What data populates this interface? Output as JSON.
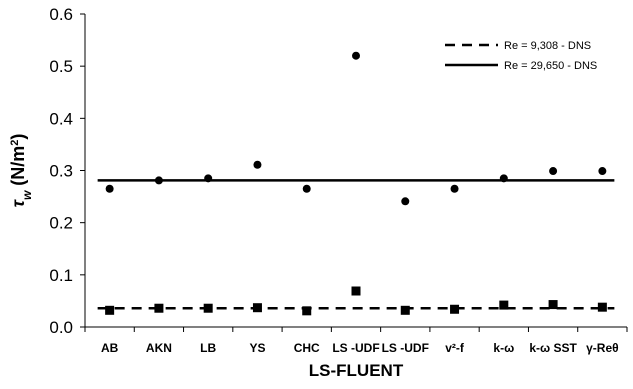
{
  "chart_data": {
    "type": "scatter",
    "title": "",
    "xlabel": "LS-FLUENT",
    "ylabel": "τw (N/m2)",
    "ylabel_parts": {
      "symbol": "τ",
      "subscript": "w",
      "unit": " (N/m",
      "unit_sup": "2",
      "unit_close": ")"
    },
    "ylim": [
      0,
      0.6
    ],
    "yticks": [
      "0.0",
      "0.1",
      "0.2",
      "0.3",
      "0.4",
      "0.5",
      "0.6"
    ],
    "categories": [
      "AB",
      "AKN",
      "LB",
      "YS",
      "CHC",
      "LS -UDF",
      "LS -UDF",
      "v²-f",
      "k-ω",
      "k-ω SST",
      "γ-Reθ"
    ],
    "grid": false,
    "legend_position": "top-right",
    "series": [
      {
        "name": "Re = 29,650",
        "marker": "circle",
        "values": [
          0.265,
          0.281,
          0.285,
          0.311,
          0.265,
          0.52,
          0.241,
          0.265,
          0.285,
          0.299,
          0.299
        ]
      },
      {
        "name": "Re = 9,308",
        "marker": "square",
        "values": [
          0.032,
          0.036,
          0.036,
          0.037,
          0.031,
          0.069,
          0.032,
          0.034,
          0.042,
          0.043,
          0.038
        ]
      }
    ],
    "reference_lines": [
      {
        "name": "Re = 9,308 - DNS",
        "value": 0.036,
        "style": "dashed"
      },
      {
        "name": "Re = 29,650 - DNS",
        "value": 0.281,
        "style": "solid"
      }
    ]
  }
}
